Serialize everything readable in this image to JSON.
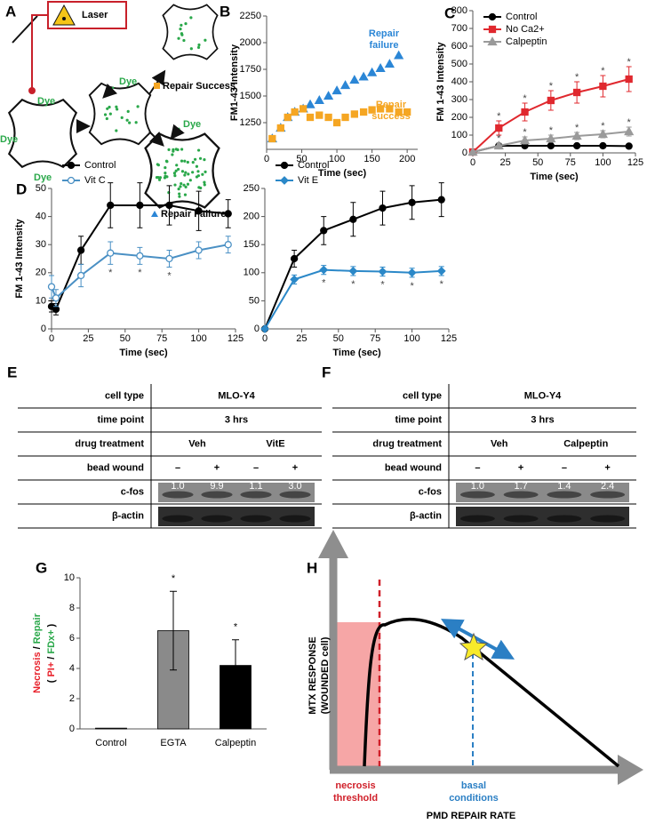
{
  "chart_data": [
    {
      "type": "scatter",
      "panel": "B",
      "xlabel": "Time (sec)",
      "ylabel": "FM1-43 Intensity",
      "xlim": [
        0,
        215
      ],
      "xticks": [
        0,
        50,
        100,
        150,
        200
      ],
      "ylim": [
        1000,
        2250
      ],
      "yticks": [
        1250,
        1500,
        1750,
        2000,
        2250
      ],
      "series": [
        {
          "name": "Repair failure",
          "color": "#2b86d6",
          "marker": "triangle",
          "filled": true,
          "x": [
            8,
            20,
            30,
            40,
            52,
            62,
            75,
            88,
            100,
            112,
            125,
            138,
            150,
            162,
            175,
            188
          ],
          "values": [
            1100,
            1200,
            1300,
            1350,
            1380,
            1420,
            1460,
            1500,
            1550,
            1600,
            1650,
            1680,
            1720,
            1760,
            1800,
            1880
          ]
        },
        {
          "name": "Repair success",
          "color": "#f5a623",
          "marker": "square",
          "filled": true,
          "x": [
            8,
            20,
            30,
            40,
            52,
            62,
            75,
            88,
            100,
            112,
            125,
            138,
            150,
            162,
            175,
            188,
            200
          ],
          "values": [
            1100,
            1200,
            1300,
            1350,
            1380,
            1300,
            1320,
            1300,
            1250,
            1300,
            1330,
            1350,
            1370,
            1380,
            1380,
            1350,
            1350
          ]
        }
      ],
      "annotations": [
        {
          "lines": [
            "Repair",
            "failure"
          ],
          "color": "#2b86d6"
        },
        {
          "lines": [
            "Repair",
            "success"
          ],
          "color": "#f5a623"
        }
      ]
    },
    {
      "type": "line",
      "panel": "C",
      "xlabel": "Time (sec)",
      "ylabel": "FM 1-43 Intensity",
      "legend": "upper left",
      "xlim": [
        0,
        125
      ],
      "xticks": [
        0,
        25,
        50,
        75,
        100,
        125
      ],
      "ylim": [
        0,
        800
      ],
      "yticks": [
        0,
        100,
        200,
        300,
        400,
        500,
        600,
        700,
        800
      ],
      "x": [
        0,
        20,
        40,
        60,
        80,
        100,
        120
      ],
      "sig_position": "above",
      "series": [
        {
          "name": "Control",
          "color": "#000000",
          "marker": "circle",
          "filled": true,
          "values": [
            5,
            40,
            40,
            40,
            40,
            40,
            38
          ],
          "errors": [
            2,
            5,
            5,
            5,
            5,
            5,
            5
          ]
        },
        {
          "name": "No Ca2+",
          "color": "#e0282e",
          "marker": "square",
          "filled": true,
          "values": [
            5,
            140,
            230,
            295,
            340,
            375,
            415
          ],
          "errors": [
            3,
            40,
            50,
            55,
            60,
            60,
            70
          ],
          "sig": [
            null,
            "*",
            "*",
            "*",
            "*",
            "*",
            "*"
          ]
        },
        {
          "name": "Calpeptin",
          "color": "#9a9a9a",
          "marker": "triangle",
          "filled": true,
          "values": [
            5,
            40,
            70,
            80,
            95,
            105,
            120
          ],
          "errors": [
            2,
            15,
            20,
            20,
            20,
            20,
            25
          ],
          "sig": [
            null,
            "*",
            "*",
            "*",
            "*",
            "*",
            "*"
          ]
        }
      ]
    },
    {
      "type": "line",
      "panel": "D",
      "xlabel": "Time (sec)",
      "ylabel": "FM 1-43 Intensity",
      "legend": "upper left",
      "xlim": [
        0,
        125
      ],
      "xticks": [
        0,
        25,
        50,
        75,
        100,
        125
      ],
      "ylim": [
        0,
        50
      ],
      "yticks": [
        0,
        10,
        20,
        30,
        40,
        50
      ],
      "x": [
        0,
        3,
        20,
        40,
        60,
        80,
        100,
        120
      ],
      "sig_position": "below",
      "series": [
        {
          "name": "Control",
          "color": "#000000",
          "marker": "circle",
          "filled": true,
          "values": [
            8,
            7,
            28,
            44,
            44,
            44,
            42,
            41
          ],
          "errors": [
            2,
            2,
            5,
            8,
            8,
            7,
            7,
            5
          ]
        },
        {
          "name": "Vit C",
          "color": "#4a90c4",
          "marker": "circle",
          "filled": false,
          "values": [
            15,
            11,
            19,
            27,
            26,
            25,
            28,
            30
          ],
          "errors": [
            4,
            3,
            4,
            4,
            3,
            3,
            3,
            3
          ],
          "sig": [
            null,
            null,
            null,
            "*",
            "*",
            "*",
            null,
            null
          ]
        }
      ]
    },
    {
      "type": "line",
      "xlabel": "Time (sec)",
      "legend": "upper left",
      "xlim": [
        0,
        125
      ],
      "xticks": [
        0,
        25,
        50,
        75,
        100,
        125
      ],
      "ylim": [
        0,
        250
      ],
      "yticks": [
        0,
        50,
        100,
        150,
        200,
        250
      ],
      "x": [
        0,
        20,
        40,
        60,
        80,
        100,
        120
      ],
      "sig_position": "below",
      "series": [
        {
          "name": "Control",
          "color": "#000000",
          "marker": "circle",
          "filled": true,
          "values": [
            0,
            125,
            175,
            195,
            215,
            225,
            230
          ],
          "errors": [
            3,
            15,
            25,
            30,
            30,
            30,
            30
          ]
        },
        {
          "name": "Vit E",
          "color": "#2b88c8",
          "marker": "diamond",
          "filled": true,
          "values": [
            0,
            88,
            105,
            103,
            102,
            100,
            103
          ],
          "errors": [
            3,
            8,
            8,
            8,
            8,
            8,
            8
          ],
          "sig": [
            null,
            null,
            "*",
            "*",
            "*",
            "*",
            "*"
          ]
        }
      ]
    },
    {
      "type": "bar",
      "panel": "G",
      "ylabel_lines": [
        [
          {
            "text": "Necrosis",
            "color": "#e8202a"
          },
          {
            "text": "/",
            "color": "#000000"
          },
          {
            "text": "Repair",
            "color": "#2aa84a"
          }
        ],
        [
          {
            "text": "(",
            "color": "#000000"
          },
          {
            "text": "PI+",
            "color": "#e8202a"
          },
          {
            "text": "/",
            "color": "#000000"
          },
          {
            "text": "FDx+",
            "color": "#2aa84a"
          },
          {
            "text": ")",
            "color": "#000000"
          }
        ]
      ],
      "ylim": [
        0,
        10
      ],
      "yticks": [
        0,
        2,
        4,
        6,
        8,
        10
      ],
      "categories": [
        "Control",
        "EGTA",
        "Calpeptin"
      ],
      "values": [
        0.05,
        6.5,
        4.2
      ],
      "errors": [
        null,
        2.6,
        1.7
      ],
      "colors": [
        "#ffffff",
        "#8a8a8a",
        "#000000"
      ],
      "sig": [
        null,
        "*",
        "*"
      ]
    }
  ],
  "diagram_a": {
    "label": "A",
    "laser": "Laser",
    "dye": "Dye",
    "success": "Repair Success",
    "failure": "Repair Failure"
  },
  "blot_e": {
    "label": "E",
    "rows": [
      {
        "name": "cell type",
        "cells": [
          "MLO-Y4"
        ]
      },
      {
        "name": "time point",
        "cells": [
          "3 hrs"
        ]
      },
      {
        "name": "drug treatment",
        "cells": [
          "Veh",
          "VitE"
        ]
      },
      {
        "name": "bead wound",
        "cells": [
          "–",
          "+",
          "–",
          "+"
        ]
      },
      {
        "name": "c-fos",
        "cells": [
          "1.0",
          "9.9",
          "1.1",
          "3.0"
        ]
      },
      {
        "name": "β-actin"
      }
    ]
  },
  "blot_f": {
    "label": "F",
    "rows": [
      {
        "name": "cell type",
        "cells": [
          "MLO-Y4"
        ]
      },
      {
        "name": "time point",
        "cells": [
          "3 hrs"
        ]
      },
      {
        "name": "drug treatment",
        "cells": [
          "Veh",
          "Calpeptin"
        ]
      },
      {
        "name": "bead wound",
        "cells": [
          "–",
          "+",
          "–",
          "+"
        ]
      },
      {
        "name": "c-fos",
        "cells": [
          "1.0",
          "1.7",
          "1.4",
          "2.4"
        ]
      },
      {
        "name": "β-actin"
      }
    ]
  },
  "diagram_h": {
    "label": "H",
    "ylabel": [
      "MTX RESPONSE",
      "(WOUNDED cell)"
    ],
    "necrosis": [
      "necrosis",
      "threshold"
    ],
    "basal": [
      "basal",
      "conditions"
    ],
    "xlabel": "PMD REPAIR RATE"
  }
}
